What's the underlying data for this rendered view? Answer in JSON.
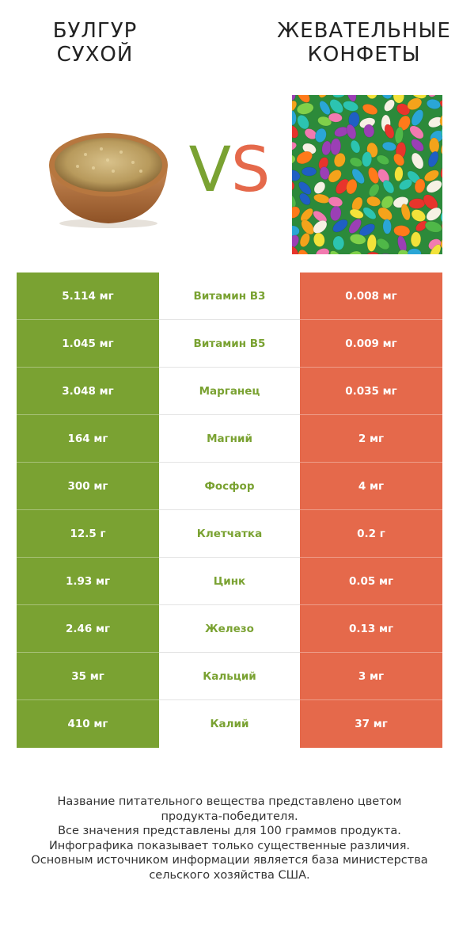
{
  "header": {
    "left_title_line1": "БУЛГУР",
    "left_title_line2": "СУХОЙ",
    "vs_v": "V",
    "vs_s": "S",
    "right_title_line1": "ЖЕВАТЕЛЬНЫЕ",
    "right_title_line2": "КОНФЕТЫ"
  },
  "colors": {
    "winner_left": "#7aa232",
    "winner_right": "#e5694b"
  },
  "rows": [
    {
      "left": "5.114 мг",
      "name": "Витамин B3",
      "right": "0.008 мг"
    },
    {
      "left": "1.045 мг",
      "name": "Витамин B5",
      "right": "0.009 мг"
    },
    {
      "left": "3.048 мг",
      "name": "Марганец",
      "right": "0.035 мг"
    },
    {
      "left": "164 мг",
      "name": "Магний",
      "right": "2 мг"
    },
    {
      "left": "300 мг",
      "name": "Фосфор",
      "right": "4 мг"
    },
    {
      "left": "12.5 г",
      "name": "Клетчатка",
      "right": "0.2 г"
    },
    {
      "left": "1.93 мг",
      "name": "Цинк",
      "right": "0.05 мг"
    },
    {
      "left": "2.46 мг",
      "name": "Железо",
      "right": "0.13 мг"
    },
    {
      "left": "35 мг",
      "name": "Кальций",
      "right": "3 мг"
    },
    {
      "left": "410 мг",
      "name": "Калий",
      "right": "37 мг"
    }
  ],
  "footer": {
    "line1": "Название питательного вещества представлено цветом",
    "line2": "продукта-победителя.",
    "line3": "Все значения представлены для 100 граммов продукта.",
    "line4": "Инфографика показывает только существенные различия.",
    "line5": "Основным источником информации является база министерства",
    "line6": "сельского хозяйства США."
  }
}
